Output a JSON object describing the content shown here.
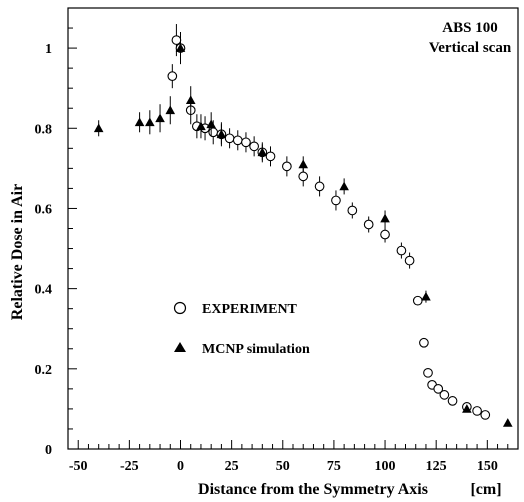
{
  "chart_data": {
    "type": "scatter",
    "title": "",
    "annotation": [
      "ABS 100",
      "Vertical scan"
    ],
    "xlabel": "Distance from the Symmetry Axis",
    "xunit": "[cm]",
    "ylabel": "Relative Dose in Air",
    "xlim": [
      -55,
      165
    ],
    "ylim": [
      0,
      1.1
    ],
    "x_ticks": [
      -50,
      -25,
      0,
      25,
      50,
      75,
      100,
      125,
      150
    ],
    "y_ticks": [
      0,
      0.2,
      0.4,
      0.6,
      0.8,
      1
    ],
    "grid": false,
    "legend": {
      "placement": "center-left"
    },
    "series": [
      {
        "name": "EXPERIMENT",
        "marker": "open-circle",
        "points": [
          {
            "x": -4,
            "y": 0.93,
            "err": 0.03
          },
          {
            "x": -2,
            "y": 1.02,
            "err": 0.04
          },
          {
            "x": 0,
            "y": 1.0,
            "err": 0.04
          },
          {
            "x": 5,
            "y": 0.845,
            "err": 0.035
          },
          {
            "x": 8,
            "y": 0.805,
            "err": 0.03
          },
          {
            "x": 12,
            "y": 0.8,
            "err": 0.03
          },
          {
            "x": 16,
            "y": 0.79,
            "err": 0.03
          },
          {
            "x": 20,
            "y": 0.785,
            "err": 0.03
          },
          {
            "x": 24,
            "y": 0.775,
            "err": 0.025
          },
          {
            "x": 28,
            "y": 0.77,
            "err": 0.025
          },
          {
            "x": 32,
            "y": 0.765,
            "err": 0.025
          },
          {
            "x": 36,
            "y": 0.755,
            "err": 0.025
          },
          {
            "x": 40,
            "y": 0.74,
            "err": 0.025
          },
          {
            "x": 44,
            "y": 0.73,
            "err": 0.025
          },
          {
            "x": 52,
            "y": 0.705,
            "err": 0.025
          },
          {
            "x": 60,
            "y": 0.68,
            "err": 0.025
          },
          {
            "x": 68,
            "y": 0.655,
            "err": 0.025
          },
          {
            "x": 76,
            "y": 0.62,
            "err": 0.025
          },
          {
            "x": 84,
            "y": 0.595,
            "err": 0.02
          },
          {
            "x": 92,
            "y": 0.56,
            "err": 0.02
          },
          {
            "x": 100,
            "y": 0.535,
            "err": 0.02
          },
          {
            "x": 108,
            "y": 0.495,
            "err": 0.02
          },
          {
            "x": 112,
            "y": 0.47,
            "err": 0.02
          },
          {
            "x": 116,
            "y": 0.37,
            "err": 0.01
          },
          {
            "x": 119,
            "y": 0.265,
            "err": 0.0
          },
          {
            "x": 121,
            "y": 0.19,
            "err": 0.0
          },
          {
            "x": 123,
            "y": 0.16,
            "err": 0.0
          },
          {
            "x": 126,
            "y": 0.15,
            "err": 0.0
          },
          {
            "x": 129,
            "y": 0.135,
            "err": 0.0
          },
          {
            "x": 133,
            "y": 0.12,
            "err": 0.0
          },
          {
            "x": 140,
            "y": 0.105,
            "err": 0.0
          },
          {
            "x": 145,
            "y": 0.095,
            "err": 0.0
          },
          {
            "x": 149,
            "y": 0.085,
            "err": 0.0
          }
        ]
      },
      {
        "name": "MCNP simulation",
        "marker": "filled-triangle",
        "points": [
          {
            "x": -40,
            "y": 0.8,
            "err": 0.02
          },
          {
            "x": -20,
            "y": 0.815,
            "err": 0.025
          },
          {
            "x": -15,
            "y": 0.815,
            "err": 0.03
          },
          {
            "x": -10,
            "y": 0.825,
            "err": 0.035
          },
          {
            "x": -5,
            "y": 0.845,
            "err": 0.035
          },
          {
            "x": 0,
            "y": 1.0,
            "err": 0.035
          },
          {
            "x": 5,
            "y": 0.87,
            "err": 0.035
          },
          {
            "x": 10,
            "y": 0.805,
            "err": 0.03
          },
          {
            "x": 15,
            "y": 0.81,
            "err": 0.03
          },
          {
            "x": 20,
            "y": 0.785,
            "err": 0.025
          },
          {
            "x": 40,
            "y": 0.74,
            "err": 0.02
          },
          {
            "x": 60,
            "y": 0.71,
            "err": 0.02
          },
          {
            "x": 80,
            "y": 0.655,
            "err": 0.02
          },
          {
            "x": 100,
            "y": 0.575,
            "err": 0.02
          },
          {
            "x": 120,
            "y": 0.38,
            "err": 0.015
          },
          {
            "x": 140,
            "y": 0.1,
            "err": 0.0
          },
          {
            "x": 160,
            "y": 0.065,
            "err": 0.0
          }
        ]
      }
    ]
  }
}
